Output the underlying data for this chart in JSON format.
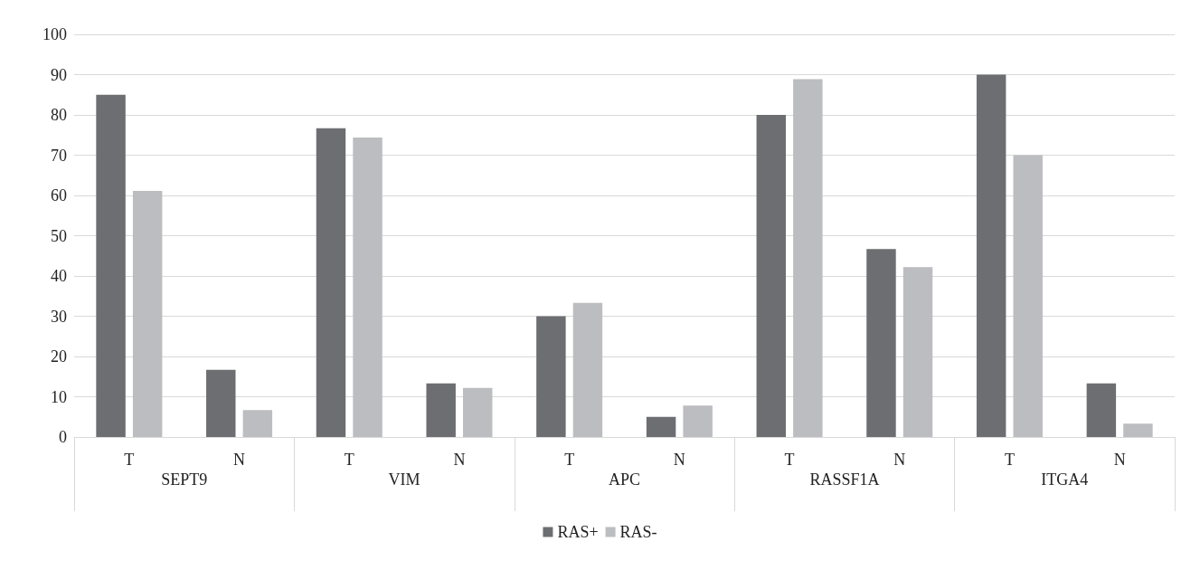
{
  "chart_data": {
    "type": "bar",
    "categories": [
      "T",
      "N",
      "T",
      "N",
      "T",
      "N",
      "T",
      "N",
      "T",
      "N"
    ],
    "annotations": [
      "SEPT9",
      "VIM",
      "APC",
      "RASSF1A",
      "ITGA4"
    ],
    "series": [
      {
        "name": "RAS+",
        "color": "#6d6e71",
        "values": [
          85,
          16.7,
          76.7,
          13.3,
          30,
          5,
          80,
          46.7,
          90,
          13.3
        ]
      },
      {
        "name": "RAS-",
        "color": "#bcbdc0",
        "values": [
          61.1,
          6.7,
          74.4,
          12.2,
          33.3,
          7.8,
          88.9,
          42.2,
          70,
          3.3
        ]
      }
    ],
    "ylim": [
      0,
      100
    ],
    "yticks": [
      0,
      10,
      20,
      30,
      40,
      50,
      60,
      70,
      80,
      90,
      100
    ],
    "grid": "y",
    "legend": "bottom"
  }
}
